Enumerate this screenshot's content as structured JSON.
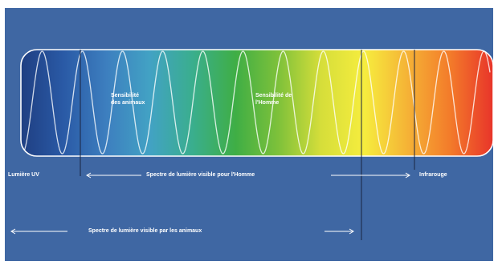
{
  "colors": {
    "background": "#3f67a3",
    "frame": "#ffffff",
    "spectrum_stops": [
      "#1f3f82",
      "#2a5aa6",
      "#3d7fbf",
      "#42a2c4",
      "#3aae8d",
      "#3fae45",
      "#7ec13a",
      "#d6de3a",
      "#f6ed3e",
      "#f5b336",
      "#f37b2a",
      "#e8342a"
    ]
  },
  "labels": {
    "sensibilite_animaux_line1": "Sensibilité",
    "sensibilite_animaux_line2": "des animaux",
    "sensibilite_homme_line1": "Sensibilité de",
    "sensibilite_homme_line2": "l'Homme",
    "uv": "Lumière UV",
    "visible_homme": "Spectre de lumière visible pour l'Homme",
    "infrarouge": "Infrarouge",
    "visible_animaux": "Spectre de lumière visible par les animaux"
  }
}
